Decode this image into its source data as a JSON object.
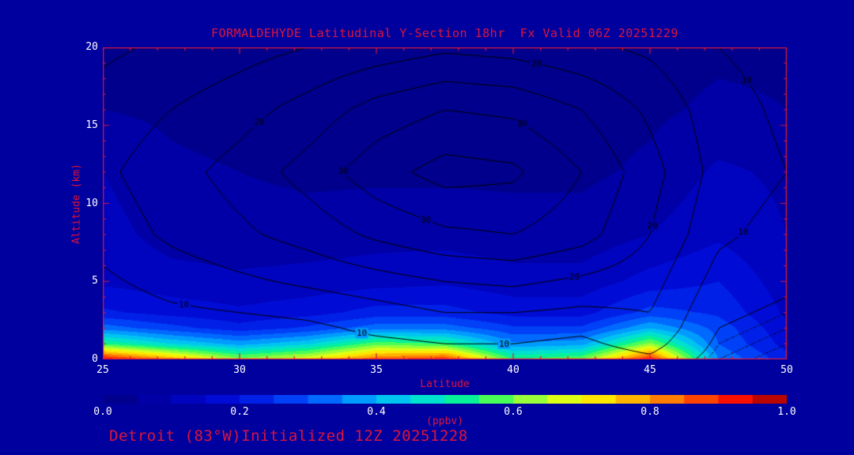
{
  "title": "FORMALDEHYDE Latitudinal Y-Section 18hr  Fx Valid 06Z 20251229",
  "footer": "Detroit (83°W)Initialized 12Z 20251228",
  "colors": {
    "background": "#00009e",
    "title_text": "#dc143c",
    "tick_text": "#ffffff",
    "axis_box": "#dc143c",
    "contour_line": "#000000"
  },
  "axes": {
    "x": {
      "label": "Latitude",
      "min": 25,
      "max": 50,
      "ticks": [
        25,
        30,
        35,
        40,
        45,
        50
      ]
    },
    "y": {
      "label": "Altitude (km)",
      "min": 0,
      "max": 20,
      "ticks": [
        0,
        5,
        10,
        15,
        20
      ]
    }
  },
  "colorbar": {
    "label": "(ppbv)",
    "min": 0.0,
    "max": 1.0,
    "ticks": [
      "0.0",
      "0.2",
      "0.4",
      "0.6",
      "0.8",
      "1.0"
    ],
    "stops": [
      [
        0.0,
        "#000080"
      ],
      [
        0.1,
        "#0000b3"
      ],
      [
        0.2,
        "#0010e0"
      ],
      [
        0.3,
        "#0050ff"
      ],
      [
        0.38,
        "#00a0ff"
      ],
      [
        0.45,
        "#00d8e8"
      ],
      [
        0.52,
        "#00f0a0"
      ],
      [
        0.58,
        "#50ff50"
      ],
      [
        0.64,
        "#b0ff30"
      ],
      [
        0.7,
        "#ffff00"
      ],
      [
        0.78,
        "#ffb000"
      ],
      [
        0.85,
        "#ff6000"
      ],
      [
        0.92,
        "#ff1000"
      ],
      [
        1.0,
        "#9c0000"
      ]
    ]
  },
  "chart_data": {
    "type": "heatmap",
    "title": "FORMALDEHYDE Latitudinal Y-Section 18hr  Fx Valid 06Z 20251229",
    "xlabel": "Latitude",
    "ylabel": "Altitude (km)",
    "units": "ppbv",
    "xlim": [
      25,
      50
    ],
    "ylim": [
      0,
      20
    ],
    "fill_step": 0.05,
    "x": [
      25,
      27.5,
      30,
      32.5,
      35,
      37.5,
      40,
      42.5,
      45,
      47.5,
      50
    ],
    "y": [
      0,
      1,
      2,
      3,
      5,
      8,
      12,
      16,
      20
    ],
    "values": [
      [
        0.95,
        0.8,
        0.62,
        0.7,
        0.85,
        0.9,
        0.55,
        0.6,
        0.92,
        0.35,
        0.22
      ],
      [
        0.55,
        0.45,
        0.38,
        0.44,
        0.58,
        0.55,
        0.36,
        0.38,
        0.62,
        0.3,
        0.18
      ],
      [
        0.33,
        0.27,
        0.22,
        0.26,
        0.33,
        0.33,
        0.26,
        0.26,
        0.4,
        0.28,
        0.16
      ],
      [
        0.21,
        0.18,
        0.16,
        0.18,
        0.22,
        0.22,
        0.18,
        0.18,
        0.27,
        0.24,
        0.14
      ],
      [
        0.14,
        0.12,
        0.11,
        0.12,
        0.13,
        0.14,
        0.12,
        0.12,
        0.17,
        0.2,
        0.12
      ],
      [
        0.12,
        0.08,
        0.07,
        0.07,
        0.08,
        0.08,
        0.07,
        0.07,
        0.1,
        0.14,
        0.1
      ],
      [
        0.1,
        0.06,
        0.05,
        0.04,
        0.04,
        0.04,
        0.04,
        0.04,
        0.06,
        0.11,
        0.09
      ],
      [
        0.05,
        0.04,
        0.03,
        0.03,
        0.03,
        0.03,
        0.03,
        0.03,
        0.04,
        0.06,
        0.05
      ],
      [
        0.03,
        0.03,
        0.03,
        0.03,
        0.02,
        0.02,
        0.02,
        0.03,
        0.03,
        0.04,
        0.04
      ]
    ],
    "contour_overlay": {
      "levels": [
        5,
        10,
        15,
        20,
        25,
        30,
        35
      ],
      "dashed_levels": [
        2,
        3,
        4
      ],
      "label_levels": [
        10,
        20,
        30
      ],
      "label_counts": {
        "10": 5,
        "20": 4,
        "30": 3
      },
      "values": [
        [
          5,
          5,
          6,
          6,
          7,
          8,
          8,
          7,
          9,
          3,
          1
        ],
        [
          6,
          6,
          7,
          8,
          9,
          10,
          10,
          9,
          12,
          4,
          2
        ],
        [
          6,
          7,
          8,
          9,
          11,
          12,
          12,
          11,
          14,
          5,
          3
        ],
        [
          7,
          9,
          10,
          11,
          13,
          15,
          15,
          14,
          15,
          6,
          4
        ],
        [
          9,
          12,
          14,
          16,
          18,
          20,
          21,
          19,
          17,
          8,
          6
        ],
        [
          12,
          16,
          19,
          22,
          26,
          29,
          30,
          27,
          20,
          11,
          8
        ],
        [
          14,
          18,
          22,
          27,
          33,
          37,
          36,
          30,
          22,
          13,
          10
        ],
        [
          12,
          15,
          18,
          22,
          27,
          30,
          29,
          25,
          19,
          12,
          9
        ],
        [
          9,
          11,
          13,
          15,
          17,
          19,
          18,
          16,
          14,
          10,
          8
        ]
      ]
    }
  }
}
